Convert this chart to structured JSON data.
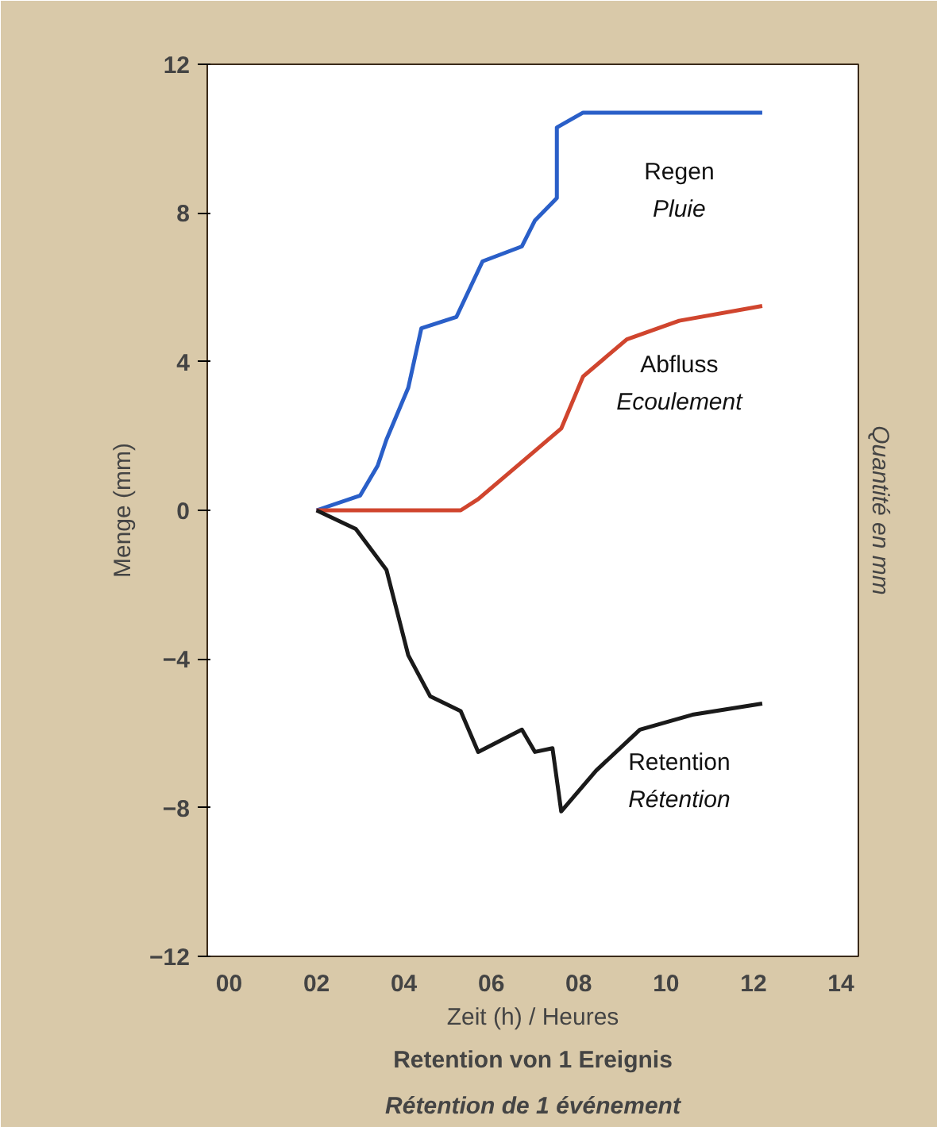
{
  "chart_data": {
    "type": "line",
    "title": "Retention von 1 Ereignis",
    "subtitle": "Rétention de 1 événement",
    "xlabel": "Zeit (h) / Heures",
    "ylabel": "Menge (mm)",
    "y2label": "Quantité en mm",
    "xlim": [
      -0.5,
      14.4
    ],
    "ylim": [
      -12,
      12
    ],
    "xticks": [
      {
        "value": 0,
        "label": "00"
      },
      {
        "value": 2,
        "label": "02"
      },
      {
        "value": 4,
        "label": "04"
      },
      {
        "value": 6,
        "label": "06"
      },
      {
        "value": 8,
        "label": "08"
      },
      10,
      12,
      14
    ],
    "yticks": [
      -12,
      -8,
      -4,
      0,
      4,
      8,
      12
    ],
    "grid": false,
    "marker": "none",
    "line_style": "solid",
    "series": [
      {
        "name": "Regen\nPluie",
        "color": "#2a5fc8",
        "x": [
          2.0,
          3.0,
          3.4,
          3.6,
          4.1,
          4.4,
          5.2,
          5.8,
          6.7,
          7.0,
          7.5,
          7.5,
          8.1,
          12.2
        ],
        "values": [
          0,
          0.4,
          1.2,
          1.9,
          3.3,
          4.9,
          5.2,
          6.7,
          7.1,
          7.8,
          8.4,
          10.3,
          10.7,
          10.7
        ]
      },
      {
        "name": "Abfluss\nEcoulement",
        "color": "#d0452e",
        "x": [
          2.0,
          5.3,
          5.7,
          6.7,
          7.6,
          8.1,
          9.1,
          10.3,
          12.2
        ],
        "values": [
          0,
          0,
          0.3,
          1.3,
          2.2,
          3.6,
          4.6,
          5.1,
          5.5
        ]
      },
      {
        "name": "Retention\nRétention",
        "color": "#1a1a1a",
        "x": [
          2.0,
          2.9,
          3.6,
          4.1,
          4.6,
          5.3,
          5.7,
          6.7,
          7.0,
          7.4,
          7.6,
          8.4,
          9.4,
          10.6,
          12.2
        ],
        "values": [
          0,
          -0.5,
          -1.6,
          -3.9,
          -5.0,
          -5.4,
          -6.5,
          -5.9,
          -6.5,
          -6.4,
          -8.1,
          -7.0,
          -5.9,
          -5.5,
          -5.2
        ]
      }
    ]
  }
}
